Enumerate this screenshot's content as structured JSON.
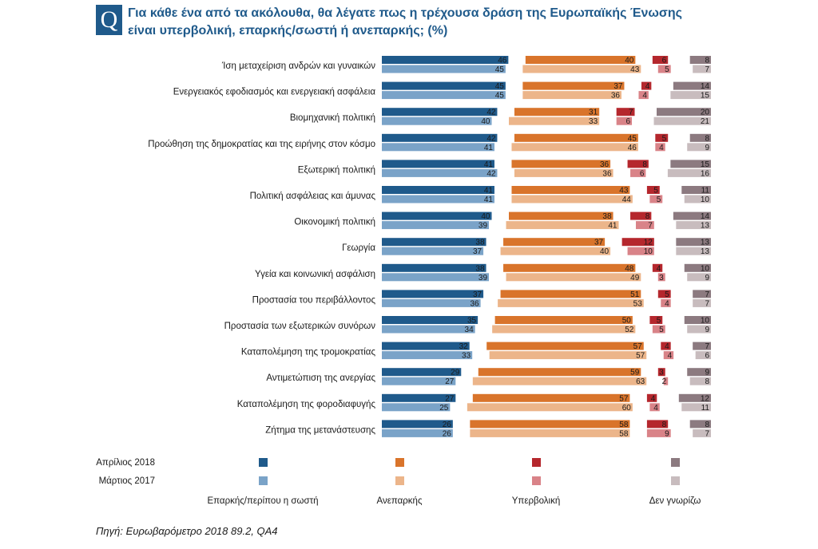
{
  "header": {
    "badge": "Q",
    "title": "Για κάθε ένα από τα ακόλουθα, θα λέγατε πως η τρέχουσα δράση της Ευρωπαϊκής Ένωσης είναι υπερβολική, επαρκής/σωστή ή ανεπαρκής; (%)"
  },
  "source": "Πηγή: Ευρωβαρόμετρο 2018 89.2, QA4",
  "chart_data": {
    "type": "bar",
    "orientation": "horizontal",
    "title": "Για κάθε ένα από τα ακόλουθα, θα λέγατε πως η τρέχουσα δράση της Ευρωπαϊκής Ένωσης είναι υπερβολική, επαρκής/σωστή ή ανεπαρκής; (%)",
    "categories": [
      "Ίση μεταχείριση ανδρών και γυναικών",
      "Ενεργειακός εφοδιασμός και ενεργειακή ασφάλεια",
      "Βιομηχανική πολιτική",
      "Προώθηση της δημοκρατίας και της ειρήνης στον κόσμο",
      "Εξωτερική πολιτική",
      "Πολιτική ασφάλειας και άμυνας",
      "Οικονομική πολιτική",
      "Γεωργία",
      "Υγεία και κοινωνική ασφάλιση",
      "Προστασία του περιβάλλοντος",
      "Προστασία των εξωτερικών συνόρων",
      "Καταπολέμηση της τρομοκρατίας",
      "Αντιμετώπιση της ανεργίας",
      "Καταπολέμηση της φοροδιαφυγής",
      "Ζήτημα της μετανάστευσης"
    ],
    "periods": [
      "Απρίλιος 2018",
      "Μάρτιος 2017"
    ],
    "groups": [
      "Επαρκής/περίπου η σωστή",
      "Ανεπαρκής",
      "Υπερβολική",
      "Δεν γνωρίζω"
    ],
    "series": [
      {
        "name": "Επαρκής/περίπου η σωστή",
        "period": "Απρίλιος 2018",
        "color": "#1f5a8b",
        "values": [
          46,
          45,
          42,
          42,
          41,
          41,
          40,
          38,
          38,
          37,
          35,
          32,
          29,
          27,
          26
        ]
      },
      {
        "name": "Επαρκής/περίπου η σωστή",
        "period": "Μάρτιος 2017",
        "color": "#7aa3c8",
        "values": [
          45,
          45,
          40,
          41,
          42,
          41,
          39,
          37,
          39,
          36,
          34,
          33,
          27,
          25,
          26
        ]
      },
      {
        "name": "Ανεπαρκής",
        "period": "Απρίλιος 2018",
        "color": "#d9742b",
        "values": [
          40,
          37,
          31,
          45,
          36,
          43,
          38,
          37,
          48,
          51,
          50,
          57,
          59,
          57,
          58
        ]
      },
      {
        "name": "Ανεπαρκής",
        "period": "Μάρτιος 2017",
        "color": "#ecb58a",
        "values": [
          43,
          36,
          33,
          46,
          36,
          44,
          41,
          40,
          49,
          53,
          52,
          57,
          63,
          60,
          58
        ]
      },
      {
        "name": "Υπερβολική",
        "period": "Απρίλιος 2018",
        "color": "#b5272d",
        "values": [
          6,
          4,
          7,
          5,
          8,
          5,
          8,
          12,
          4,
          5,
          5,
          4,
          3,
          4,
          8
        ]
      },
      {
        "name": "Υπερβολική",
        "period": "Μάρτιος 2017",
        "color": "#d98388",
        "values": [
          5,
          4,
          6,
          4,
          6,
          5,
          7,
          10,
          3,
          4,
          5,
          4,
          2,
          4,
          9
        ]
      },
      {
        "name": "Δεν γνωρίζω",
        "period": "Απρίλιος 2018",
        "color": "#8c7a80",
        "values": [
          8,
          14,
          20,
          8,
          15,
          11,
          14,
          13,
          10,
          7,
          10,
          7,
          9,
          12,
          8
        ]
      },
      {
        "name": "Δεν γνωρίζω",
        "period": "Μάρτιος 2017",
        "color": "#c8bcbe",
        "values": [
          7,
          15,
          21,
          9,
          16,
          10,
          13,
          13,
          9,
          7,
          9,
          6,
          8,
          11,
          7
        ]
      }
    ],
    "xlabel": "",
    "ylabel": "",
    "legend": {
      "periods": [
        "Απρίλιος 2018",
        "Μάρτιος 2017"
      ],
      "groups": [
        "Επαρκής/περίπου η σωστή",
        "Ανεπαρκής",
        "Υπερβολική",
        "Δεν γνωρίζω"
      ],
      "placement": "bottom"
    }
  }
}
